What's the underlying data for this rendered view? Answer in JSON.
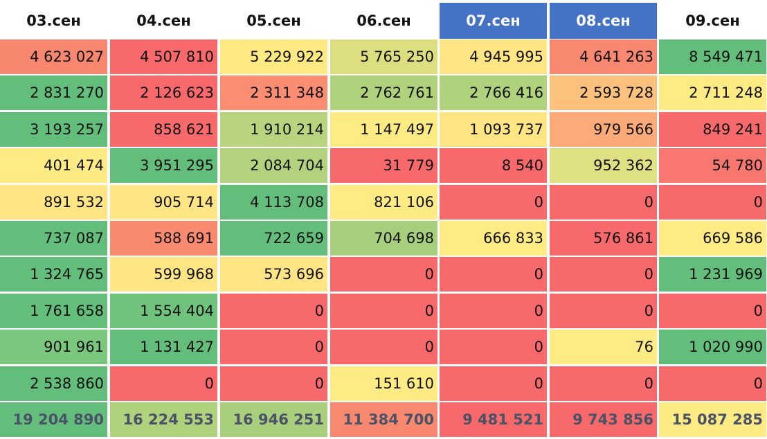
{
  "chart_data": {
    "type": "table",
    "columns": [
      {
        "label": "03.сен",
        "highlight": false
      },
      {
        "label": "04.сен",
        "highlight": false
      },
      {
        "label": "05.сен",
        "highlight": false
      },
      {
        "label": "06.сен",
        "highlight": false
      },
      {
        "label": "07.сен",
        "highlight": true
      },
      {
        "label": "08.сен",
        "highlight": true
      },
      {
        "label": "09.сен",
        "highlight": false
      }
    ],
    "rows": [
      [
        "4 623 027",
        "4 507 810",
        "5 229 922",
        "5 765 250",
        "4 945 995",
        "4 641 263",
        "8 549 471"
      ],
      [
        "2 831 270",
        "2 126 623",
        "2 311 348",
        "2 762 761",
        "2 766 416",
        "2 593 728",
        "2 711 248"
      ],
      [
        "3 193 257",
        "858 621",
        "1 910 214",
        "1 147 497",
        "1 093 737",
        "979 566",
        "849 241"
      ],
      [
        "401 474",
        "3 951 295",
        "2 084 704",
        "31 779",
        "8 540",
        "952 362",
        "54 780"
      ],
      [
        "891 532",
        "905 714",
        "4 113 708",
        "821 106",
        "0",
        "0",
        "0"
      ],
      [
        "737 087",
        "588 691",
        "722 659",
        "704 698",
        "666 833",
        "576 861",
        "669 586"
      ],
      [
        "1 324 765",
        "599 968",
        "573 696",
        "0",
        "0",
        "0",
        "1 231 969"
      ],
      [
        "1 761 658",
        "1 554 404",
        "0",
        "0",
        "0",
        "0",
        "0"
      ],
      [
        "901 961",
        "1 131 427",
        "0",
        "0",
        "0",
        "76",
        "1 020 990"
      ],
      [
        "2 538 860",
        "0",
        "0",
        "151 610",
        "0",
        "0",
        "0"
      ]
    ],
    "totals": [
      "19 204 890",
      "16 224 553",
      "16 946 251",
      "11 384 700",
      "9 481 521",
      "9 743 856",
      "15 087 285"
    ],
    "cell_colors": [
      [
        "#f8876f",
        "#f8696b",
        "#fee983",
        "#ddde7f",
        "#ffe583",
        "#f98870",
        "#63be7b"
      ],
      [
        "#63be7b",
        "#f8696b",
        "#fa8d72",
        "#b1d27c",
        "#b1d27c",
        "#fcc17c",
        "#ffeb84"
      ],
      [
        "#63be7b",
        "#f8696b",
        "#b8d47f",
        "#ffeb84",
        "#ffe583",
        "#fcab78",
        "#f8696b"
      ],
      [
        "#ffeb84",
        "#63be7b",
        "#b2d27d",
        "#f8696b",
        "#f8696b",
        "#dfe082",
        "#f8776e"
      ],
      [
        "#ffe583",
        "#ffe583",
        "#63be7b",
        "#ffeb84",
        "#f8696b",
        "#f8696b",
        "#f8696b"
      ],
      [
        "#63be7b",
        "#f98a70",
        "#63be7b",
        "#a6ce7c",
        "#ffeb84",
        "#f8696b",
        "#ffeb84"
      ],
      [
        "#63be7b",
        "#ffe583",
        "#ffe583",
        "#f8696b",
        "#f8696b",
        "#f8696b",
        "#63be7b"
      ],
      [
        "#63be7b",
        "#6fc37d",
        "#f8696b",
        "#f8696b",
        "#f8696b",
        "#f8696b",
        "#f8696b"
      ],
      [
        "#7cc77e",
        "#63be7b",
        "#f8696b",
        "#f8696b",
        "#f8696b",
        "#ffeb84",
        "#63be7b"
      ],
      [
        "#63be7b",
        "#f8696b",
        "#f8696b",
        "#ffeb84",
        "#f8696b",
        "#f8696b",
        "#f8696b"
      ]
    ],
    "total_colors": [
      "#63be7b",
      "#b1d27c",
      "#a9cf7c",
      "#f98870",
      "#f8696b",
      "#f8696b",
      "#ffeb84"
    ],
    "highlight_color": "#4472c4"
  }
}
